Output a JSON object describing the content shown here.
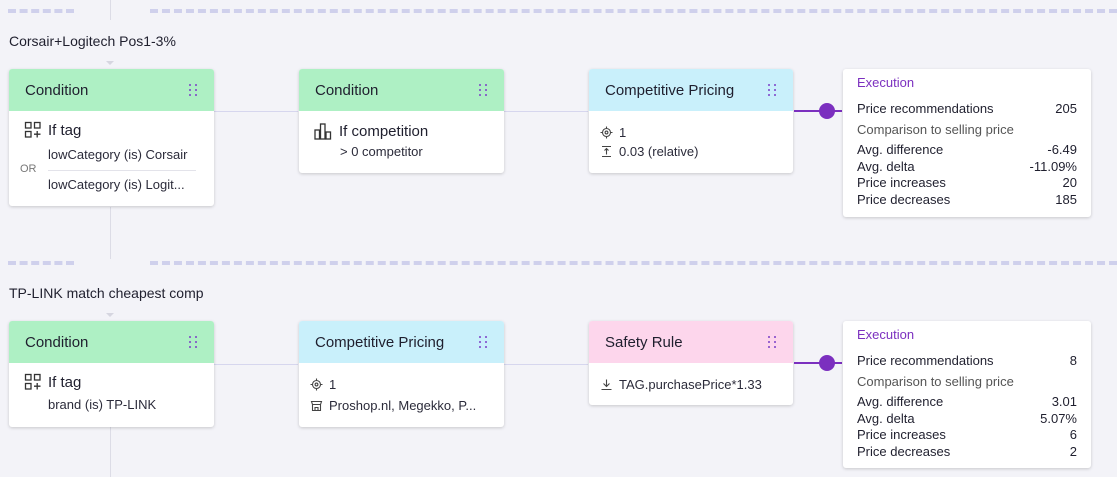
{
  "groups": [
    {
      "title": "Corsair+Logitech Pos1-3%",
      "nodes": [
        {
          "type": "Condition",
          "heading": "If tag",
          "lines": [
            "lowCategory (is) Corsair",
            "lowCategory (is) Logit..."
          ],
          "or_label": "OR"
        },
        {
          "type": "Condition",
          "heading": "If competition",
          "lines": [
            "> 0 competitor"
          ]
        },
        {
          "type": "Competitive Pricing",
          "lines": [
            "1",
            "0.03 (relative)"
          ]
        }
      ],
      "execution": {
        "title": "Execution",
        "rows": [
          {
            "label": "Price recommendations",
            "value": "205"
          },
          {
            "label": "Comparison to selling price",
            "value": ""
          },
          {
            "label": "Avg. difference",
            "value": "-6.49"
          },
          {
            "label": "Avg. delta",
            "value": "-11.09%"
          },
          {
            "label": "Price increases",
            "value": "20"
          },
          {
            "label": "Price decreases",
            "value": "185"
          }
        ]
      }
    },
    {
      "title": "TP-LINK match cheapest comp",
      "nodes": [
        {
          "type": "Condition",
          "heading": "If tag",
          "lines": [
            "brand (is) TP-LINK"
          ]
        },
        {
          "type": "Competitive Pricing",
          "lines": [
            "1",
            "Proshop.nl, Megekko, P..."
          ]
        },
        {
          "type": "Safety Rule",
          "lines": [
            "TAG.purchasePrice*1.33"
          ]
        }
      ],
      "execution": {
        "title": "Execution",
        "rows": [
          {
            "label": "Price recommendations",
            "value": "8"
          },
          {
            "label": "Comparison to selling price",
            "value": ""
          },
          {
            "label": "Avg. difference",
            "value": "3.01"
          },
          {
            "label": "Avg. delta",
            "value": "5.07%"
          },
          {
            "label": "Price increases",
            "value": "6"
          },
          {
            "label": "Price decreases",
            "value": "2"
          }
        ]
      }
    }
  ],
  "colors": {
    "condition": "#aef0c4",
    "competitive": "#c9f0fb",
    "safety": "#fdd6ec",
    "accent": "#7b2fbf"
  },
  "icons": [
    "tag-add-icon",
    "bar-chart-icon",
    "target-icon",
    "step-icon",
    "shop-icon",
    "download-icon",
    "drag-handle-icon"
  ]
}
